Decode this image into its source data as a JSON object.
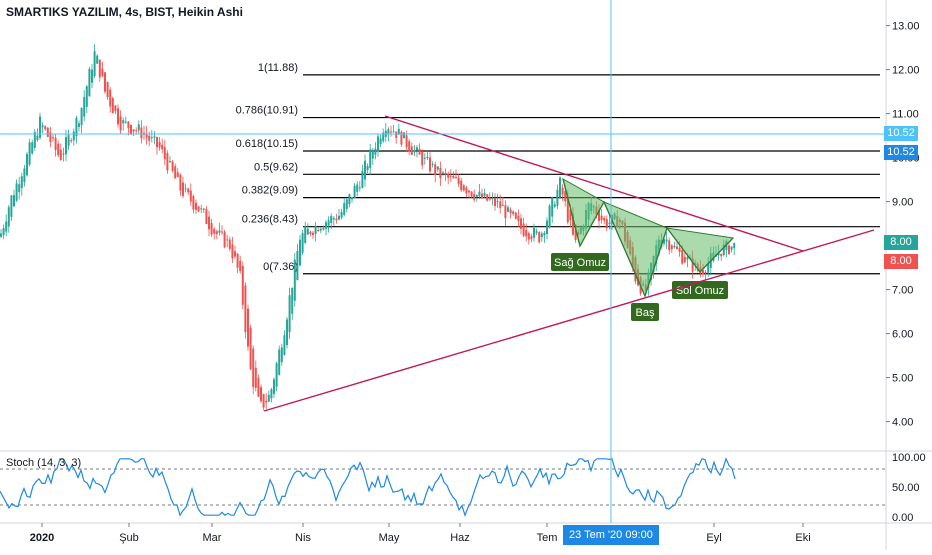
{
  "header": {
    "title": "SMARTIKS YAZILIM, 4s, BIST, Heikin Ashi",
    "stoch_label": "Stoch (14, 3, 3)"
  },
  "colors": {
    "up": "#26a69a",
    "down": "#ef5350",
    "fib_line": "#000000",
    "trend": "#c2185b",
    "pattern_fill": "#66bb6a",
    "stoch": "#1e88e5",
    "crosshair": "#4fc3f7"
  },
  "crosshair": {
    "price": "10.52",
    "time": "23 Tem '20   09:00"
  },
  "price_labels": {
    "last_green": "8.00",
    "last_red": "8.00",
    "cross_top": "10.52",
    "cross_mid": "10.52"
  },
  "chart_data": [
    {
      "type": "candlestick",
      "title": "SMARTIKS YAZILIM, 4s, BIST, Heikin Ashi",
      "x_ticks": [
        "2020",
        "Şub",
        "Mar",
        "Nis",
        "May",
        "Haz",
        "Tem",
        "Eyl",
        "Eki"
      ],
      "y_ticks": [
        "13.00",
        "12.00",
        "11.00",
        "10.00",
        "9.00",
        "8.00",
        "7.00",
        "6.00",
        "5.00",
        "4.00"
      ],
      "ylim": [
        3.4,
        13.4
      ],
      "series": [
        {
          "x": [
            0,
            10,
            20,
            40,
            60,
            80,
            95,
            105,
            120,
            140,
            160,
            180,
            200,
            215,
            230,
            240,
            250,
            260,
            270,
            285,
            300,
            320,
            340,
            360,
            375,
            385,
            400,
            420,
            440,
            460,
            480,
            500,
            520,
            540,
            560,
            575,
            590,
            605,
            620,
            635,
            645,
            660,
            680,
            700,
            720,
            735
          ],
          "y": [
            8.2,
            9.0,
            9.6,
            10.8,
            10.0,
            11.0,
            12.4,
            11.5,
            10.8,
            10.6,
            10.2,
            9.3,
            8.8,
            8.3,
            8.0,
            7.3,
            5.2,
            4.3,
            4.6,
            6.2,
            8.2,
            8.5,
            8.7,
            9.5,
            10.3,
            10.8,
            10.5,
            10.0,
            9.6,
            9.4,
            9.1,
            8.9,
            8.4,
            8.2,
            9.4,
            8.0,
            9.0,
            8.5,
            8.6,
            7.3,
            6.9,
            8.3,
            7.8,
            7.4,
            7.9,
            8.0
          ]
        }
      ],
      "fib_levels": [
        {
          "label": "1(11.88)",
          "value": 11.88
        },
        {
          "label": "0.786(10.91)",
          "value": 10.91
        },
        {
          "label": "0.618(10.15)",
          "value": 10.15
        },
        {
          "label": "0.5(9.62)",
          "value": 9.62
        },
        {
          "label": "0.382(9.09)",
          "value": 9.09
        },
        {
          "label": "0.236(8.43)",
          "value": 8.43
        },
        {
          "label": "0(7.36)",
          "value": 7.36
        }
      ],
      "annotations": [
        "Sağ Omuz",
        "Baş",
        "Sol Omuz"
      ]
    },
    {
      "type": "line",
      "title": "Stoch (14, 3, 3)",
      "y_ticks": [
        "100.00",
        "50.00",
        "0.00"
      ],
      "ylim": [
        0,
        100
      ],
      "levels": [
        80,
        20
      ]
    }
  ]
}
